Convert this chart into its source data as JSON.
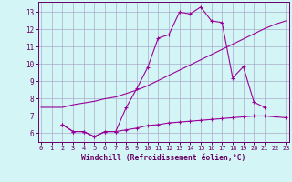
{
  "background_color": "#d4f5f5",
  "grid_color": "#aaaacc",
  "line_color": "#990099",
  "xlim": [
    -0.3,
    23.3
  ],
  "ylim": [
    5.5,
    13.6
  ],
  "yticks": [
    6,
    7,
    8,
    9,
    10,
    11,
    12,
    13
  ],
  "xticks": [
    0,
    1,
    2,
    3,
    4,
    5,
    6,
    7,
    8,
    9,
    10,
    11,
    12,
    13,
    14,
    15,
    16,
    17,
    18,
    19,
    20,
    21,
    22,
    23
  ],
  "xlabel": "Windchill (Refroidissement éolien,°C)",
  "series1_x": [
    0,
    1,
    2,
    3,
    4,
    5,
    6,
    7,
    8,
    9,
    10,
    11,
    12,
    13,
    14,
    15,
    16,
    17,
    18,
    19,
    20,
    21,
    22,
    23
  ],
  "series1_y": [
    7.5,
    7.5,
    7.5,
    7.65,
    7.75,
    7.85,
    8.0,
    8.1,
    8.3,
    8.5,
    8.75,
    9.05,
    9.35,
    9.65,
    9.95,
    10.25,
    10.55,
    10.85,
    11.15,
    11.45,
    11.75,
    12.05,
    12.3,
    12.5
  ],
  "series2_x": [
    2,
    3,
    4,
    5,
    6,
    7,
    8,
    9,
    10,
    11,
    12,
    13,
    14,
    15,
    16,
    17,
    18,
    19,
    20,
    21
  ],
  "series2_y": [
    6.5,
    6.1,
    6.1,
    5.8,
    6.1,
    6.1,
    7.5,
    8.6,
    9.8,
    11.5,
    11.7,
    13.0,
    12.9,
    13.3,
    12.5,
    12.4,
    9.2,
    9.85,
    7.8,
    7.5
  ],
  "series3_x": [
    2,
    3,
    4,
    5,
    6,
    7,
    8,
    9,
    10,
    11,
    12,
    13,
    14,
    15,
    16,
    17,
    18,
    19,
    20,
    21,
    22,
    23
  ],
  "series3_y": [
    6.5,
    6.1,
    6.1,
    5.8,
    6.1,
    6.1,
    6.2,
    6.3,
    6.45,
    6.5,
    6.6,
    6.65,
    6.7,
    6.75,
    6.8,
    6.85,
    6.9,
    6.95,
    7.0,
    7.0,
    6.95,
    6.9
  ]
}
